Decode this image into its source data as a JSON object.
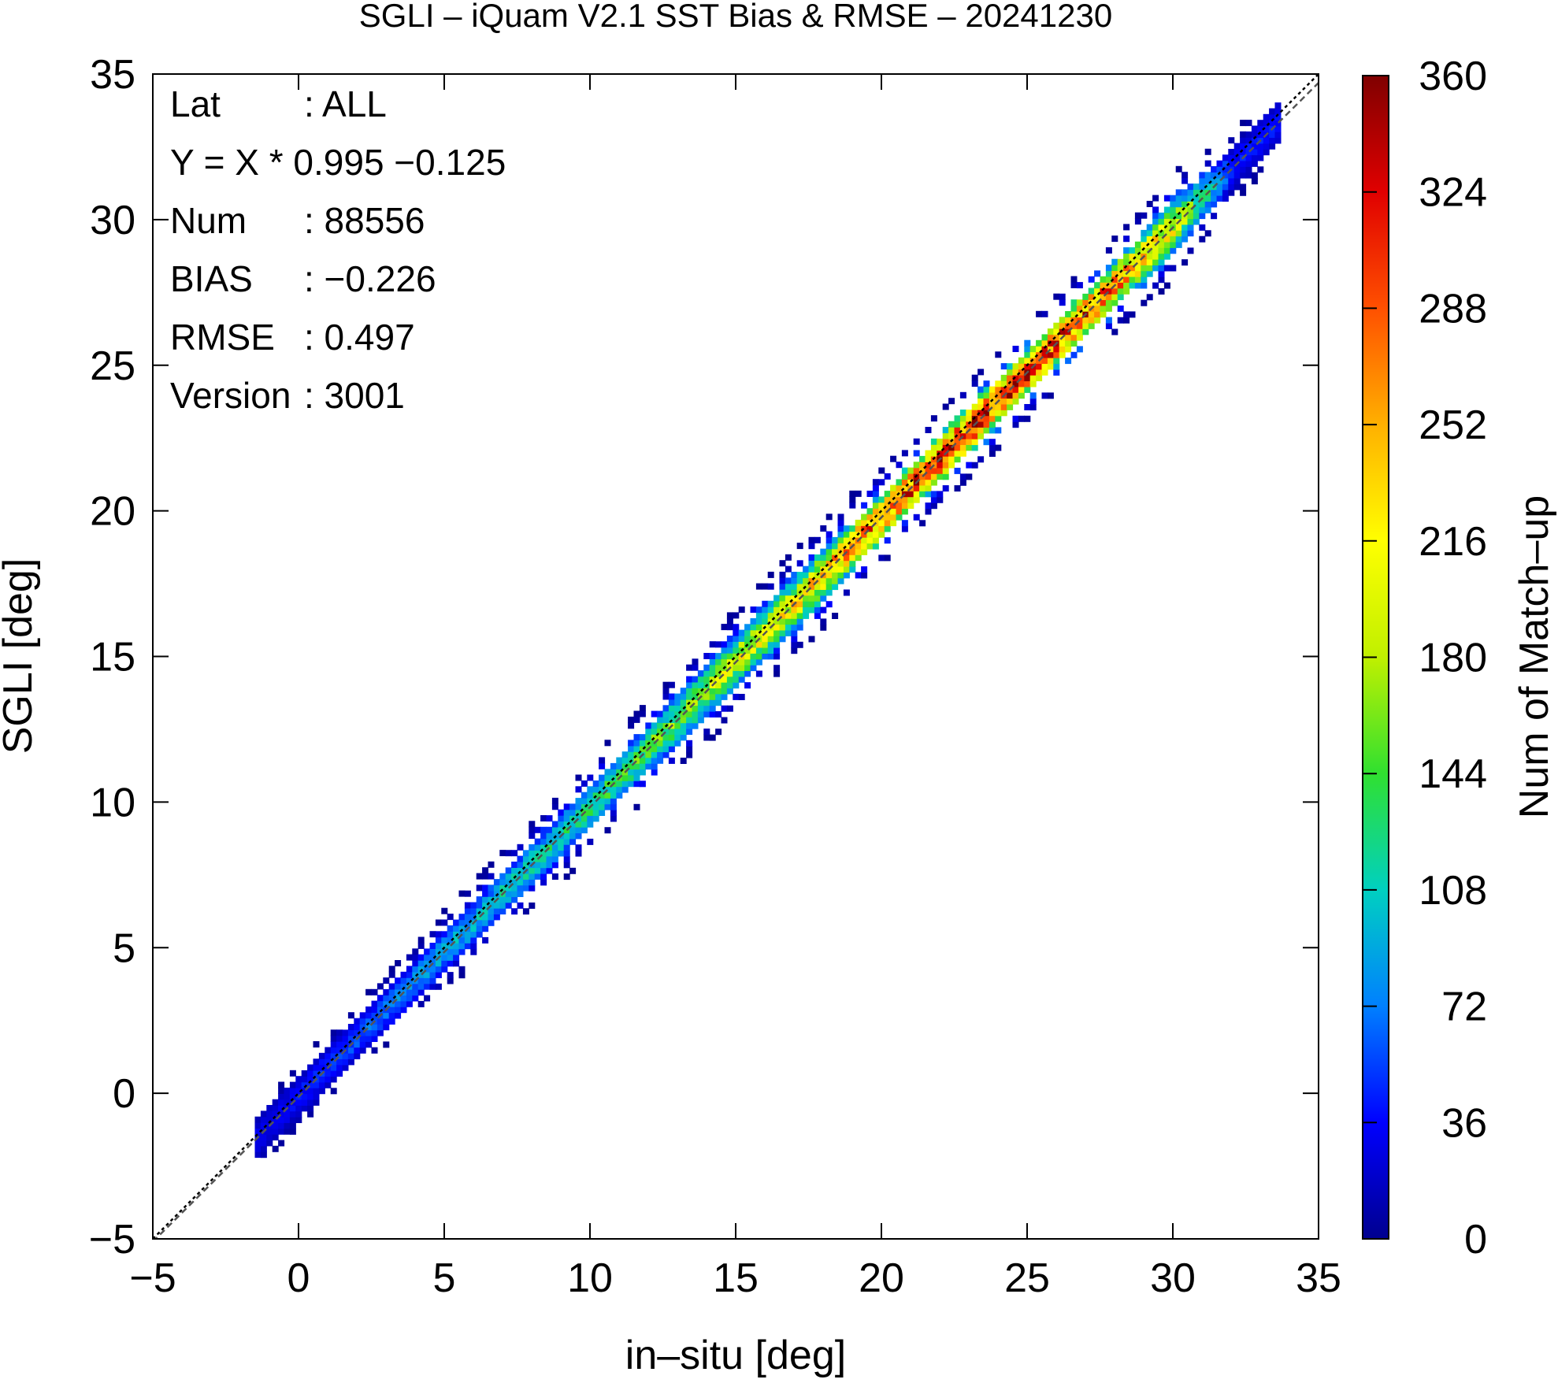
{
  "chart_data": {
    "type": "heatmap",
    "title": "SGLI – iQuam V2.1 SST Bias & RMSE  – 20241230",
    "xlabel": "in–situ [deg]",
    "ylabel": "SGLI [deg]",
    "xlim": [
      -5,
      35
    ],
    "ylim": [
      -5,
      35
    ],
    "x_ticks": [
      "−5",
      "0",
      "5",
      "10",
      "15",
      "20",
      "25",
      "30",
      "35"
    ],
    "y_ticks": [
      "−5",
      "0",
      "5",
      "10",
      "15",
      "20",
      "25",
      "30",
      "35"
    ],
    "grid": false,
    "colorbar": {
      "label": "Num of Match–up",
      "range": [
        0,
        360
      ],
      "ticks": [
        "0",
        "36",
        "72",
        "108",
        "144",
        "180",
        "216",
        "252",
        "288",
        "324",
        "360"
      ]
    },
    "lines": [
      {
        "kind": "one-to-one",
        "slope": 1.0,
        "intercept": 0.0,
        "style": "dotted",
        "color": "#000000"
      },
      {
        "kind": "regression",
        "slope": 0.995,
        "intercept": -0.125,
        "style": "dashed",
        "color": "#555555"
      }
    ],
    "density_band": {
      "x_range": [
        -1.5,
        33.5
      ],
      "slope": 0.995,
      "intercept": -0.125,
      "profile": [
        {
          "x": -1,
          "peak": 30,
          "width": 0.5
        },
        {
          "x": 2,
          "peak": 60,
          "width": 0.45
        },
        {
          "x": 5,
          "peak": 90,
          "width": 0.5
        },
        {
          "x": 8,
          "peak": 110,
          "width": 0.55
        },
        {
          "x": 11,
          "peak": 135,
          "width": 0.55
        },
        {
          "x": 14,
          "peak": 175,
          "width": 0.6
        },
        {
          "x": 17,
          "peak": 215,
          "width": 0.6
        },
        {
          "x": 20,
          "peak": 285,
          "width": 0.55
        },
        {
          "x": 22,
          "peak": 330,
          "width": 0.55
        },
        {
          "x": 24,
          "peak": 320,
          "width": 0.55
        },
        {
          "x": 26,
          "peak": 300,
          "width": 0.55
        },
        {
          "x": 28,
          "peak": 270,
          "width": 0.55
        },
        {
          "x": 30,
          "peak": 200,
          "width": 0.6
        },
        {
          "x": 32,
          "peak": 40,
          "width": 0.5
        }
      ]
    }
  },
  "stats": [
    {
      "label": "Lat",
      "value": ": ALL"
    },
    {
      "label": "Y = X * 0.995 −0.125",
      "value": ""
    },
    {
      "label": "Num",
      "value": ": 88556"
    },
    {
      "label": "BIAS",
      "value": ": −0.226"
    },
    {
      "label": "RMSE",
      "value": ": 0.497"
    },
    {
      "label": "Version",
      "value": ": 3001"
    }
  ],
  "colormap": [
    "#00008f",
    "#0000ff",
    "#0080ff",
    "#00d0c0",
    "#30e030",
    "#c0f000",
    "#ffff00",
    "#ffb000",
    "#ff5000",
    "#e00000",
    "#800000"
  ]
}
